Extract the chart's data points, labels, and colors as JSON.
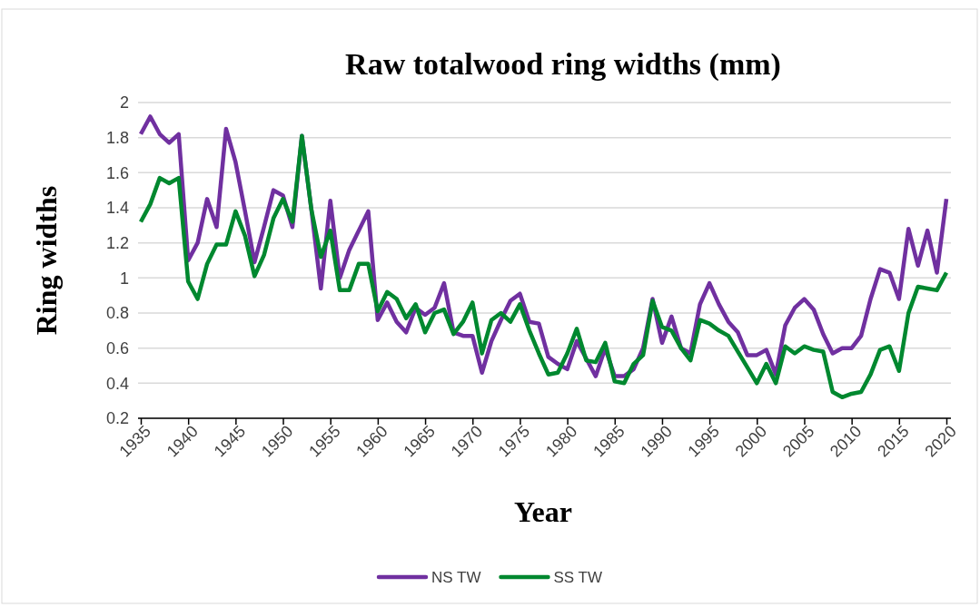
{
  "chart_data": {
    "type": "line",
    "title": "Raw totalwood ring widths (mm)",
    "xlabel": "Year",
    "ylabel": "Ring widths",
    "x": [
      1935,
      1936,
      1937,
      1938,
      1939,
      1940,
      1941,
      1942,
      1943,
      1944,
      1945,
      1946,
      1947,
      1948,
      1949,
      1950,
      1951,
      1952,
      1953,
      1954,
      1955,
      1956,
      1957,
      1958,
      1959,
      1960,
      1961,
      1962,
      1963,
      1964,
      1965,
      1966,
      1967,
      1968,
      1969,
      1970,
      1971,
      1972,
      1973,
      1974,
      1975,
      1976,
      1977,
      1978,
      1979,
      1980,
      1981,
      1982,
      1983,
      1984,
      1985,
      1986,
      1987,
      1988,
      1989,
      1990,
      1991,
      1992,
      1993,
      1994,
      1995,
      1996,
      1997,
      1998,
      1999,
      2000,
      2001,
      2002,
      2003,
      2004,
      2005,
      2006,
      2007,
      2008,
      2009,
      2010,
      2011,
      2012,
      2013,
      2014,
      2015,
      2016,
      2017,
      2018,
      2019,
      2020
    ],
    "series": [
      {
        "name": "NS TW",
        "color": "#7030a0",
        "values": [
          1.82,
          1.92,
          1.82,
          1.77,
          1.82,
          1.1,
          1.2,
          1.45,
          1.29,
          1.85,
          1.66,
          1.38,
          1.09,
          1.29,
          1.5,
          1.47,
          1.29,
          1.81,
          1.39,
          0.94,
          1.44,
          1.0,
          1.16,
          1.27,
          1.38,
          0.76,
          0.86,
          0.75,
          0.69,
          0.83,
          0.79,
          0.83,
          0.97,
          0.69,
          0.67,
          0.67,
          0.46,
          0.64,
          0.76,
          0.87,
          0.91,
          0.75,
          0.74,
          0.55,
          0.51,
          0.48,
          0.64,
          0.54,
          0.44,
          0.6,
          0.44,
          0.44,
          0.48,
          0.6,
          0.88,
          0.63,
          0.78,
          0.6,
          0.57,
          0.85,
          0.97,
          0.85,
          0.75,
          0.69,
          0.56,
          0.56,
          0.59,
          0.45,
          0.73,
          0.83,
          0.88,
          0.82,
          0.68,
          0.57,
          0.6,
          0.6,
          0.67,
          0.88,
          1.05,
          1.03,
          0.88,
          1.28,
          1.07,
          1.27,
          1.03,
          1.45
        ]
      },
      {
        "name": "SS TW",
        "color": "#00882f",
        "values": [
          1.32,
          1.42,
          1.57,
          1.54,
          1.57,
          0.98,
          0.88,
          1.08,
          1.19,
          1.19,
          1.38,
          1.24,
          1.01,
          1.13,
          1.34,
          1.45,
          1.32,
          1.81,
          1.39,
          1.12,
          1.27,
          0.93,
          0.93,
          1.08,
          1.08,
          0.81,
          0.92,
          0.88,
          0.77,
          0.85,
          0.69,
          0.8,
          0.82,
          0.68,
          0.75,
          0.86,
          0.57,
          0.76,
          0.8,
          0.75,
          0.85,
          0.7,
          0.57,
          0.45,
          0.46,
          0.57,
          0.71,
          0.53,
          0.52,
          0.63,
          0.41,
          0.4,
          0.51,
          0.56,
          0.87,
          0.72,
          0.7,
          0.6,
          0.53,
          0.76,
          0.74,
          0.7,
          0.67,
          0.58,
          0.49,
          0.4,
          0.51,
          0.4,
          0.61,
          0.57,
          0.61,
          0.59,
          0.58,
          0.35,
          0.32,
          0.34,
          0.35,
          0.45,
          0.59,
          0.61,
          0.47,
          0.8,
          0.95,
          0.94,
          0.93,
          1.03
        ]
      }
    ],
    "xlim": [
      1935,
      2020
    ],
    "xticks": [
      1935,
      1940,
      1945,
      1950,
      1955,
      1960,
      1965,
      1970,
      1975,
      1980,
      1985,
      1990,
      1995,
      2000,
      2005,
      2010,
      2015,
      2020
    ],
    "ylim": [
      0.2,
      2
    ],
    "yticks": [
      0.2,
      0.4,
      0.6,
      0.8,
      1,
      1.2,
      1.4,
      1.6,
      1.8,
      2
    ],
    "grid": "y",
    "legend": "bottom",
    "marker": "none",
    "line_style": "solid"
  }
}
